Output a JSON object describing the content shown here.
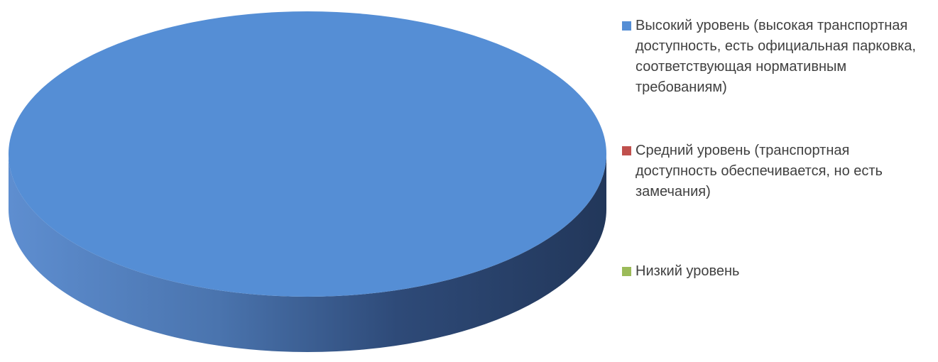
{
  "chart_data": {
    "type": "pie",
    "style": "3d",
    "series": [
      {
        "values": [
          {
            "label": "Высокий уровень (высокая транспортная доступность, есть официальная парковка, соответствующая нормативным требованиям)",
            "value": 100,
            "color": "#558ED5"
          },
          {
            "label": "Средний уровень (транспортная доступность обеспечивается, но есть замечания)",
            "value": 0,
            "color": "#C0504D"
          },
          {
            "label": "Низкий уровень",
            "value": 0,
            "color": "#9BBB59"
          }
        ]
      }
    ],
    "legend": {
      "position": "right",
      "items": [
        {
          "label": "Высокий уровень (высокая транспортная доступность, есть официальная парковка, соответствующая нормативным требованиям)",
          "color": "#558ED5"
        },
        {
          "label": "Средний уровень (транспортная доступность обеспечивается, но есть замечания)",
          "color": "#C0504D"
        },
        {
          "label": "Низкий уровень",
          "color": "#9BBB59"
        }
      ]
    }
  }
}
